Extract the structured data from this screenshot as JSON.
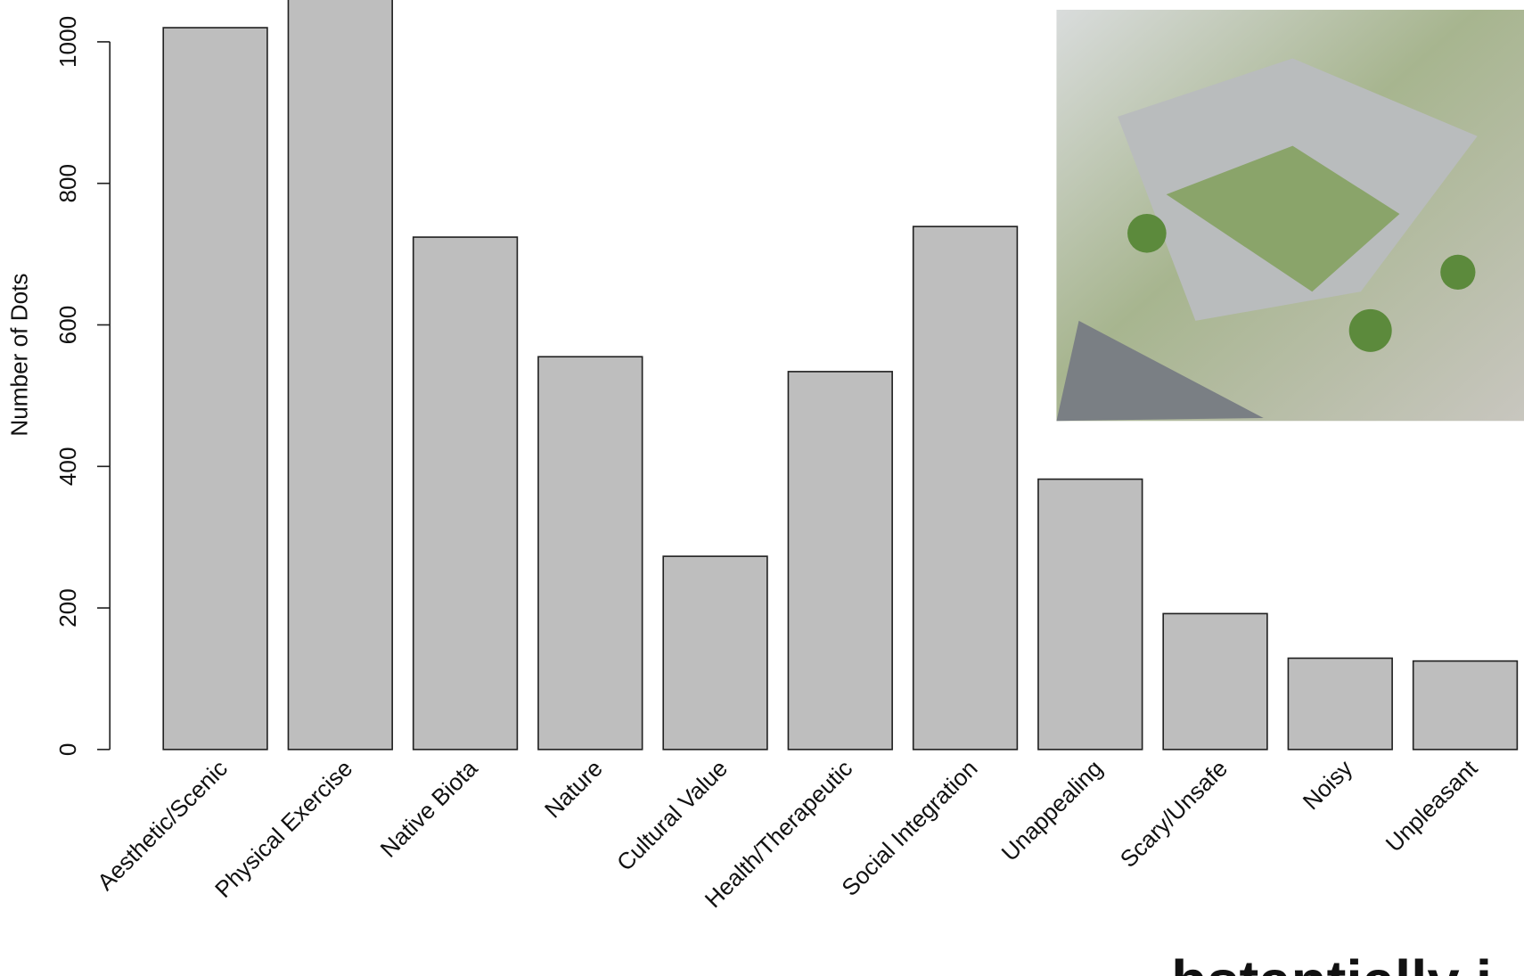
{
  "chart_data": {
    "type": "bar",
    "y_label": "Number of Dots",
    "categories": [
      "Aesthetic/Scenic",
      "Physical Exercise",
      "Native Biota",
      "Nature",
      "Cultural Value",
      "Health/Therapeutic",
      "Social Integration",
      "Unappealing",
      "Scary/Unsafe",
      "Noisy",
      "Unpleasant"
    ],
    "values": [
      1020,
      1080,
      724,
      555,
      273,
      534,
      739,
      382,
      192,
      129,
      125
    ],
    "color": "#bebebe",
    "ylim": [
      0,
      1000
    ],
    "yticks": [
      0,
      200,
      400,
      600,
      800,
      1000
    ]
  },
  "overlay_text": "bstantially i"
}
